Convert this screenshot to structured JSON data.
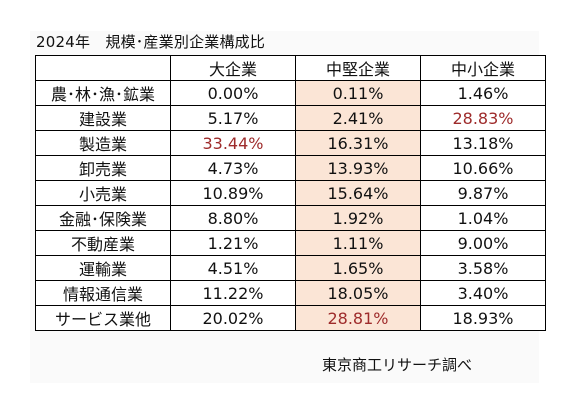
{
  "title": "2024年　規模･産業別企業構成比",
  "columns": [
    "大企業",
    "中堅企業",
    "中小企業"
  ],
  "rows": [
    {
      "label": "農･林･漁･鉱業",
      "values": [
        "0.00%",
        "0.11%",
        "1.46%"
      ]
    },
    {
      "label": "建設業",
      "values": [
        "5.17%",
        "2.41%",
        "28.83%"
      ]
    },
    {
      "label": "製造業",
      "values": [
        "33.44%",
        "16.31%",
        "13.18%"
      ]
    },
    {
      "label": "卸売業",
      "values": [
        "4.73%",
        "13.93%",
        "10.66%"
      ]
    },
    {
      "label": "小売業",
      "values": [
        "10.89%",
        "15.64%",
        "9.87%"
      ]
    },
    {
      "label": "金融･保険業",
      "values": [
        "8.80%",
        "1.92%",
        "1.04%"
      ]
    },
    {
      "label": "不動産業",
      "values": [
        "1.21%",
        "1.11%",
        "9.00%"
      ]
    },
    {
      "label": "運輸業",
      "values": [
        "4.51%",
        "1.65%",
        "3.58%"
      ]
    },
    {
      "label": "情報通信業",
      "values": [
        "11.22%",
        "18.05%",
        "3.40%"
      ]
    },
    {
      "label": "サービス業他",
      "values": [
        "20.02%",
        "28.81%",
        "18.93%"
      ]
    }
  ],
  "highlighted_cells": [
    {
      "row": 1,
      "col": 2
    },
    {
      "row": 2,
      "col": 0
    },
    {
      "row": 9,
      "col": 1
    }
  ],
  "colors": {
    "highlight_text": "#9e2b2b",
    "mid_column_fill": "#fbe5d6",
    "border": "#000000"
  },
  "source": "東京商工リサーチ調べ"
}
